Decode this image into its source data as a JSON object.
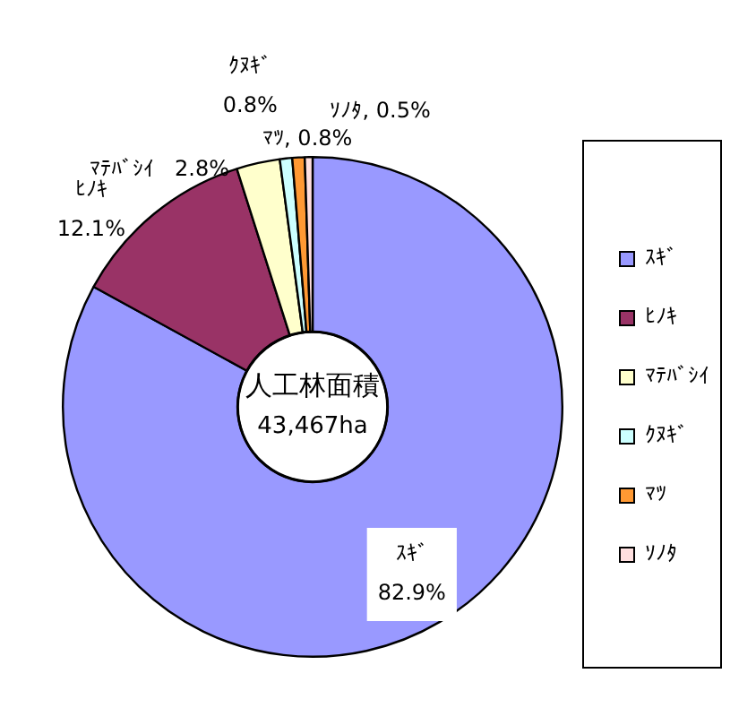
{
  "chart_data": {
    "type": "donut",
    "categories": [
      "ｽｷﾞ",
      "ﾋﾉｷ",
      "ﾏﾃﾊﾞｼｲ",
      "ｸﾇｷﾞ",
      "ﾏﾂ",
      "ｿﾉﾀ"
    ],
    "values": [
      82.9,
      12.1,
      2.8,
      0.8,
      0.8,
      0.5
    ],
    "colors": [
      "#9999ff",
      "#993366",
      "#ffffcc",
      "#ccffff",
      "#ff9933",
      "#ffe0e0"
    ],
    "value_labels": [
      "ｽｷﾞ\n82.9%",
      "ﾋﾉｷ\n12.1%",
      "ﾏﾃﾊﾞｼｲ   2.8%",
      "ｸﾇｷﾞ\n0.8%",
      "ﾏﾂ, 0.8%",
      "ｿﾉﾀ, 0.5%"
    ],
    "annotations": [
      "人工林面積",
      "43,467ha"
    ],
    "legend": "right"
  }
}
